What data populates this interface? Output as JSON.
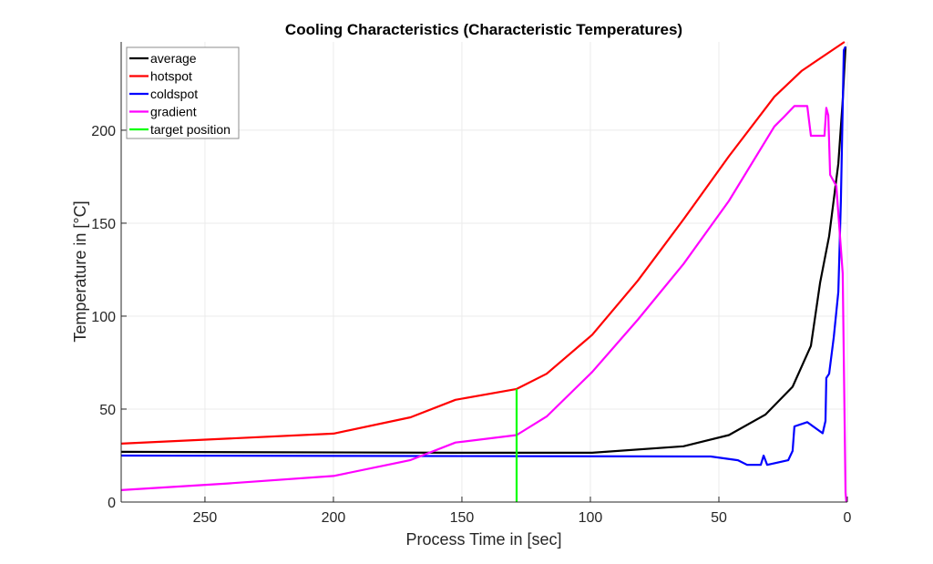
{
  "chart_data": {
    "type": "line",
    "title": "Cooling Characteristics (Characteristic Temperatures)",
    "xlabel": "Process Time in [sec]",
    "ylabel": "Temperature in [°C]",
    "xlim": [
      282.6,
      0
    ],
    "ylim": [
      0,
      247.5
    ],
    "x_reversed": true,
    "xticks": [
      250,
      200,
      150,
      100,
      50,
      0
    ],
    "yticks": [
      0,
      50,
      100,
      150,
      200
    ],
    "grid": true,
    "legend_position": "top-left",
    "series": [
      {
        "name": "average",
        "color": "#000000",
        "x": [
          282.6,
          152.5,
          99.3,
          63.8,
          46.1,
          31.9,
          21.3,
          14.2,
          10.6,
          7.1,
          3.5,
          1.8,
          0.7
        ],
        "y": [
          27,
          26.5,
          26.5,
          30,
          36,
          47,
          62,
          84,
          118,
          143,
          182,
          216,
          245
        ]
      },
      {
        "name": "hotspot",
        "color": "#ff0000",
        "x": [
          282.6,
          200,
          170,
          152.5,
          128.7,
          117,
          99.3,
          81.6,
          63.8,
          46.1,
          28.4,
          17.7,
          1.1
        ],
        "y": [
          31.4,
          36.8,
          45.6,
          55,
          60.8,
          69,
          90,
          119,
          152,
          186,
          218,
          232,
          247.5
        ]
      },
      {
        "name": "coldspot",
        "color": "#0000ff",
        "x": [
          282.6,
          53.2,
          42.6,
          39,
          33.7,
          32.6,
          31.2,
          23,
          21.3,
          20.6,
          15.6,
          9.6,
          8.5,
          8.2,
          7.1,
          5.3,
          3.5,
          2.5,
          1.4,
          0.7
        ],
        "y": [
          25,
          24.5,
          22.5,
          20,
          20,
          25,
          20,
          22.5,
          27.5,
          40.7,
          43,
          37,
          43.6,
          66.7,
          69,
          88.7,
          113,
          162,
          243,
          245
        ]
      },
      {
        "name": "gradient",
        "color": "#ff00ff",
        "x": [
          282.6,
          241.1,
          200,
          170.2,
          152.5,
          128.7,
          117,
          99.3,
          81.6,
          63.8,
          46.1,
          28.4,
          24.8,
          22.7,
          20.6,
          15.6,
          14.2,
          8.9,
          8.2,
          7.4,
          6.7,
          4.3,
          1.8,
          0.7,
          0.4
        ],
        "y": [
          6.4,
          10,
          14,
          22.5,
          32,
          36,
          46,
          70,
          98,
          128,
          162,
          202,
          207,
          210,
          213,
          213,
          197,
          197,
          212,
          208,
          176,
          170,
          123,
          5,
          0
        ]
      },
      {
        "name": "target position",
        "color": "#00ff00",
        "x": [
          128.7,
          128.7
        ],
        "y": [
          0,
          60.8
        ]
      }
    ]
  }
}
